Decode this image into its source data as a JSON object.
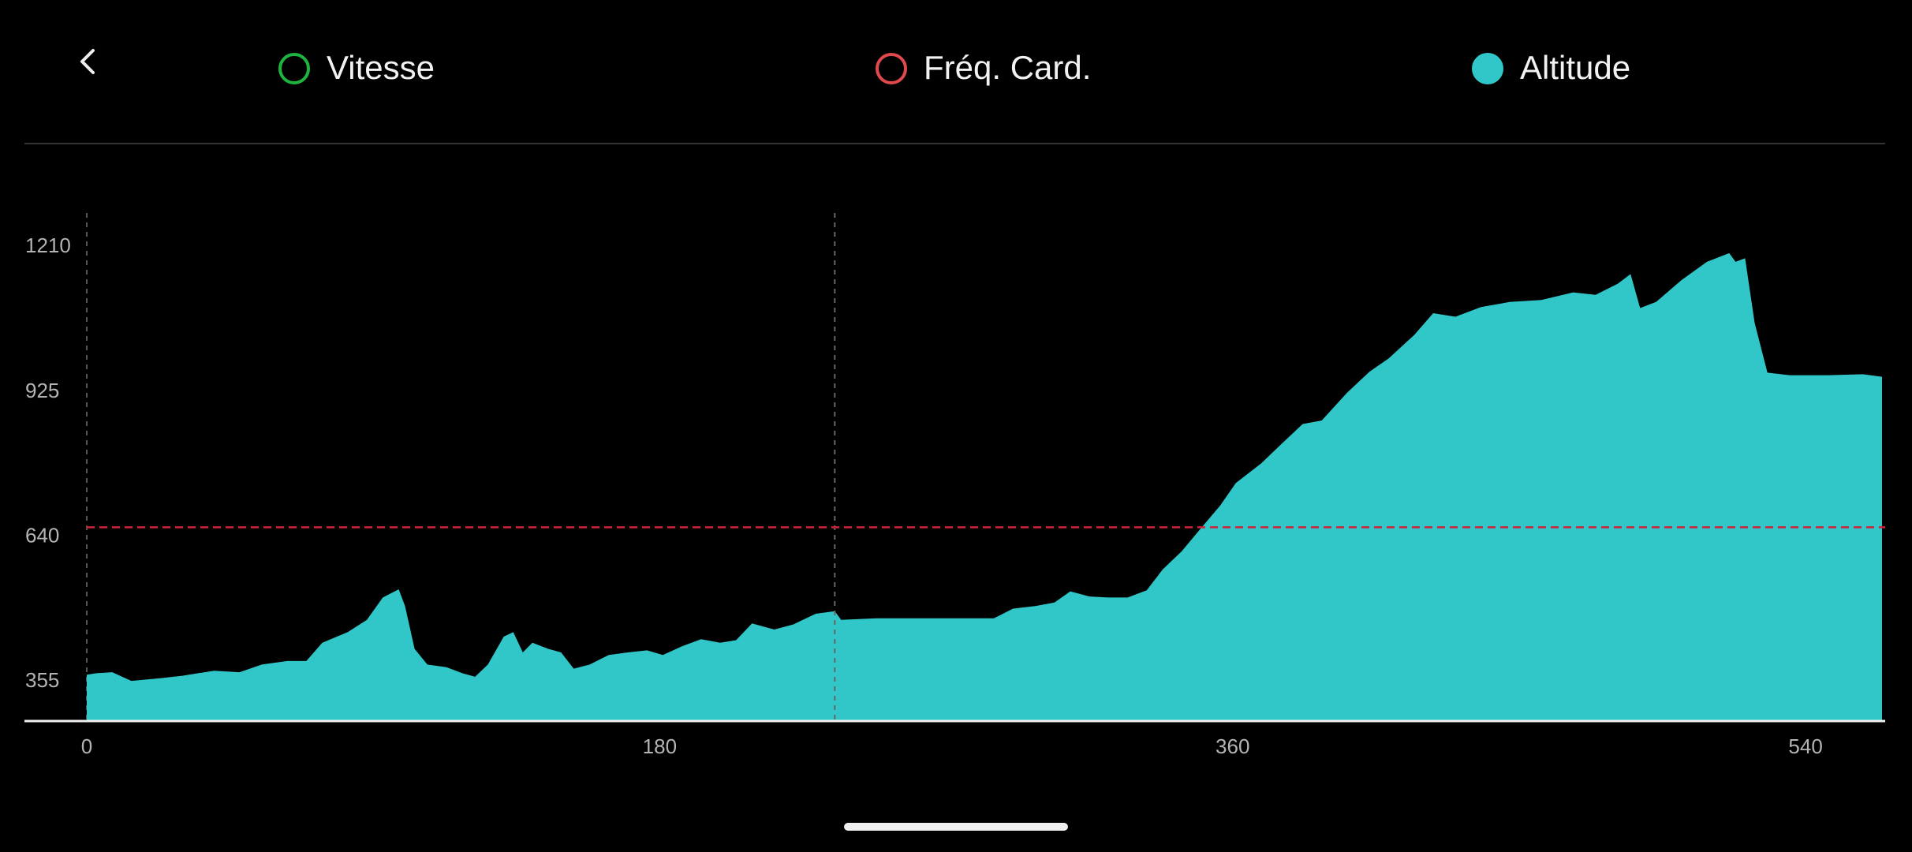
{
  "chart_data": {
    "type": "area",
    "legend": [
      {
        "name": "Vitesse",
        "color": "#1db43f",
        "filled": false
      },
      {
        "name": "Fréq. Card.",
        "color": "#e0494d",
        "filled": false
      },
      {
        "name": "Altitude",
        "color": "#31c7c9",
        "filled": true
      }
    ],
    "x": [
      0,
      3,
      8,
      14,
      23,
      30,
      40,
      48,
      55,
      63,
      69,
      74,
      82,
      88,
      93,
      98,
      100,
      103,
      107,
      113,
      118,
      122,
      126,
      131,
      134,
      137,
      140,
      145,
      149,
      153,
      158,
      164,
      170,
      176,
      181,
      187,
      193,
      199,
      204,
      209,
      216,
      222,
      229,
      235,
      237,
      248,
      264,
      279,
      285,
      291,
      298,
      304,
      309,
      315,
      321,
      327,
      333,
      338,
      344,
      350,
      356,
      361,
      369,
      375,
      382,
      388,
      396,
      403,
      409,
      417,
      423,
      430,
      438,
      447,
      457,
      467,
      474,
      481,
      485,
      488,
      493,
      501,
      509,
      516,
      518,
      521,
      524,
      528,
      535,
      547,
      558,
      564
    ],
    "series": [
      {
        "name": "Altitude",
        "color": "#31c7c9",
        "values": [
          369,
          372,
          374,
          357,
          362,
          367,
          377,
          374,
          389,
          396,
          396,
          432,
          453,
          477,
          521,
          537,
          504,
          420,
          389,
          384,
          372,
          365,
          389,
          444,
          453,
          413,
          432,
          420,
          413,
          381,
          389,
          408,
          413,
          417,
          408,
          425,
          439,
          432,
          437,
          470,
          458,
          468,
          489,
          494,
          477,
          480,
          480,
          480,
          480,
          499,
          504,
          511,
          533,
          523,
          521,
          521,
          535,
          576,
          612,
          657,
          701,
          746,
          785,
          821,
          862,
          869,
          924,
          965,
          991,
          1037,
          1080,
          1073,
          1092,
          1102,
          1106,
          1121,
          1116,
          1138,
          1157,
          1090,
          1102,
          1145,
          1181,
          1198,
          1181,
          1188,
          1061,
          963,
          958,
          958,
          960,
          955
        ]
      }
    ],
    "xlim": [
      0,
      565
    ],
    "ylim": [
      278,
      1277
    ],
    "xticks": [
      0,
      180,
      360,
      540
    ],
    "yticks": [
      355,
      640,
      925,
      1210
    ],
    "reference_y": 659,
    "reference_color": "#d0213a",
    "marker_x": 235
  }
}
